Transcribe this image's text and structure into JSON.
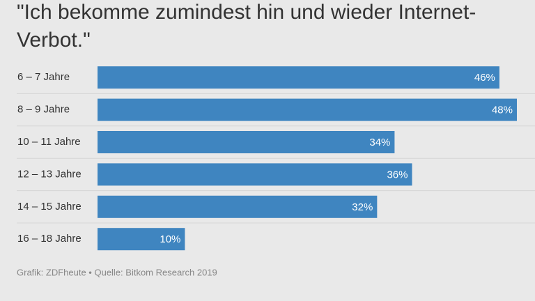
{
  "chart_data": {
    "type": "bar",
    "orientation": "horizontal",
    "title": "\"Ich bekomme zumindest hin und wieder Internet-Verbot.\"",
    "categories": [
      "6 – 7 Jahre",
      "8 – 9 Jahre",
      "10 – 11 Jahre",
      "12 – 13 Jahre",
      "14 – 15 Jahre",
      "16 – 18 Jahre"
    ],
    "values": [
      46,
      48,
      34,
      36,
      32,
      10
    ],
    "value_labels": [
      "46%",
      "48%",
      "34%",
      "36%",
      "32%",
      "10%"
    ],
    "color": "#3f85c0",
    "source": "Grafik: ZDFheute • Quelle: Bitkom Research 2019"
  }
}
